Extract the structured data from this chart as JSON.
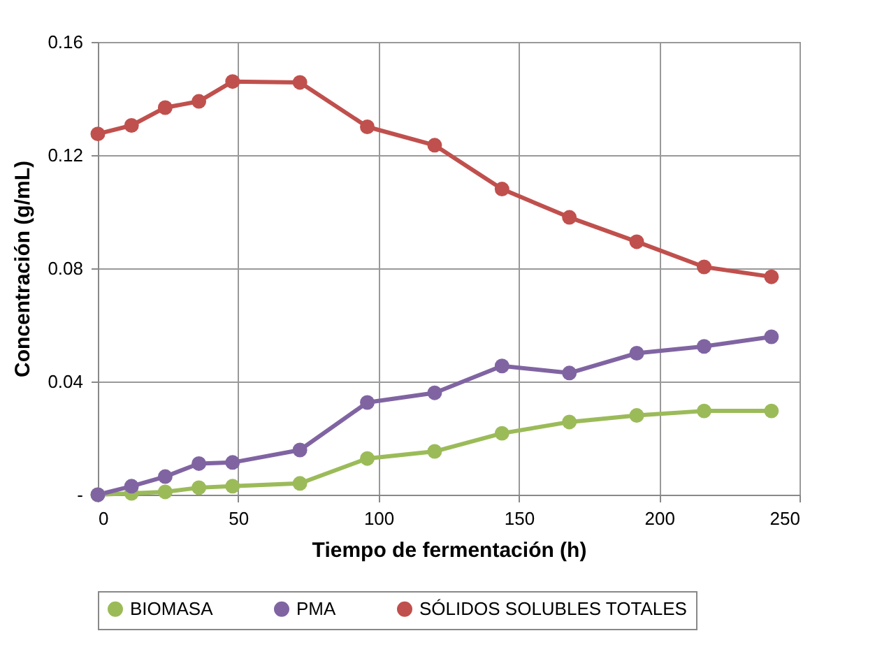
{
  "chart_data": {
    "type": "line",
    "xlabel": "Tiempo de fermentación (h)",
    "ylabel": "Concentración (g/mL)",
    "x": [
      0,
      12,
      24,
      36,
      48,
      72,
      96,
      120,
      144,
      168,
      192,
      216,
      240
    ],
    "series": [
      {
        "name": "BIOMASA",
        "color": "#9bbb59",
        "values": [
          0,
          0.0005,
          0.001,
          0.0025,
          0.003,
          0.004,
          0.0128,
          0.0153,
          0.0217,
          0.0257,
          0.028,
          0.0296,
          0.0296
        ]
      },
      {
        "name": "PMA",
        "color": "#8064a2",
        "values": [
          0,
          0.003,
          0.0064,
          0.011,
          0.0114,
          0.0158,
          0.0326,
          0.036,
          0.0455,
          0.043,
          0.05,
          0.0524,
          0.0558
        ]
      },
      {
        "name": "SÓLIDOS SOLUBLES TOTALES",
        "color": "#c0504d",
        "values": [
          0.1275,
          0.1305,
          0.1368,
          0.139,
          0.146,
          0.1457,
          0.13,
          0.1235,
          0.108,
          0.098,
          0.0894,
          0.0805,
          0.077
        ]
      }
    ],
    "xlim": [
      0,
      250
    ],
    "xticks": [
      0,
      50,
      100,
      150,
      200,
      250
    ],
    "ylim": [
      0,
      0.16
    ],
    "yticks": [
      {
        "value": 0,
        "label": "-"
      },
      0.04,
      0.08,
      0.12,
      0.16
    ],
    "grid": true,
    "legend": "bottom",
    "marker": "circle",
    "line_style": "solid"
  }
}
